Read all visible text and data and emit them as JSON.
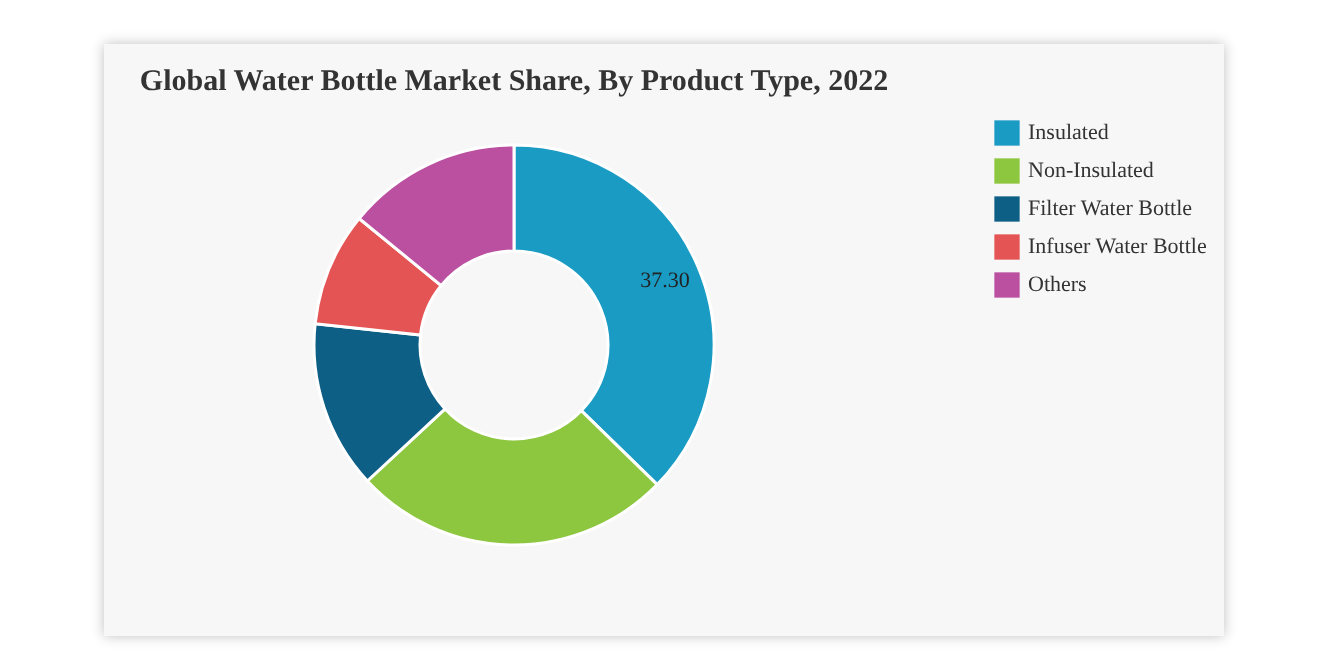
{
  "chart_data": {
    "type": "donut",
    "title": "Global Water Bottle Market Share, By Product Type, 2022",
    "categories": [
      "Insulated",
      "Non-Insulated",
      "Filter Water Bottle",
      "Infuser Water Bottle",
      "Others"
    ],
    "values": [
      37.3,
      25.8,
      13.6,
      9.2,
      14.1
    ],
    "colors": [
      "#1a9bc4",
      "#8dc63f",
      "#0e5f86",
      "#e55454",
      "#bb4fa0"
    ],
    "value_labels": [
      "37.30",
      null,
      null,
      null,
      null
    ],
    "legend": "right"
  }
}
